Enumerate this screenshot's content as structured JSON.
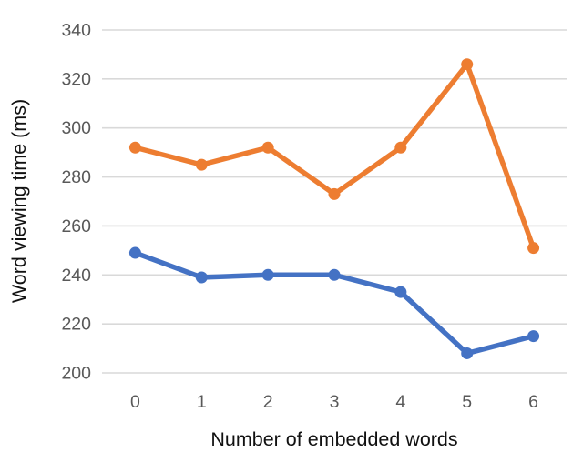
{
  "chart_data": {
    "type": "line",
    "title": "",
    "xlabel": "Number of embedded words",
    "ylabel": "Word viewing time (ms)",
    "categories": [
      "0",
      "1",
      "2",
      "3",
      "4",
      "5",
      "6"
    ],
    "series": [
      {
        "name": "orange-series",
        "color": "#ED7D31",
        "values": [
          292,
          285,
          292,
          273,
          292,
          326,
          251
        ]
      },
      {
        "name": "blue-series",
        "color": "#4472C4",
        "values": [
          249,
          239,
          240,
          240,
          233,
          208,
          215
        ]
      }
    ],
    "ylim": [
      200,
      340
    ],
    "ytick_step": 20,
    "yticks": [
      "200",
      "220",
      "240",
      "260",
      "280",
      "300",
      "320",
      "340"
    ],
    "grid": true,
    "legend_position": "none",
    "marker": "circle"
  },
  "style_colors": {
    "gridline": "#D9D9D9",
    "tick_label": "#595959",
    "axis_title": "#111111",
    "background": "#FFFFFF"
  }
}
